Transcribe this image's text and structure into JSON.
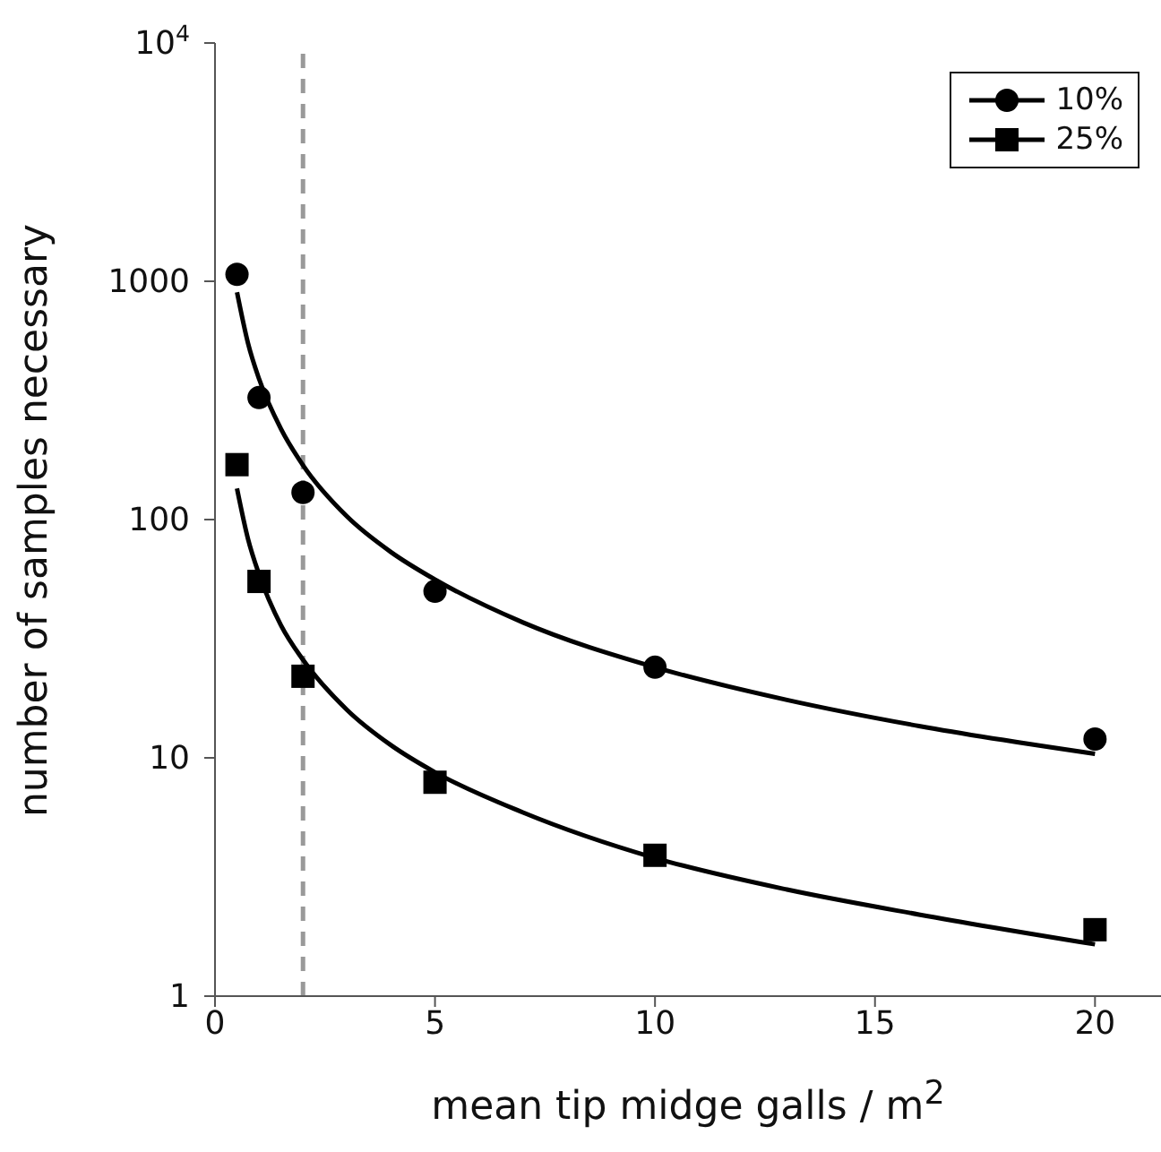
{
  "chart_data": {
    "type": "scatter",
    "xlabel": "mean tip midge galls / m$^{2}$",
    "ylabel": "number of samples necessary",
    "log": "y",
    "grid": false,
    "legend": "top right",
    "xlim": [
      0,
      21.5
    ],
    "xticks": [
      0,
      5,
      10,
      15,
      20
    ],
    "ylim": [
      1,
      10000
    ],
    "yticks": [
      1,
      10,
      100,
      1000,
      {
        "value": 10000,
        "label": "10$^{4}$"
      }
    ],
    "ref_lines": [
      {
        "axis": "x",
        "value": 2,
        "color": "#999999",
        "line_style": "dashed"
      }
    ],
    "series": [
      {
        "name": "10%",
        "marker": "circle",
        "color": "#000000",
        "x": [
          0.5,
          1,
          2,
          5,
          10,
          20
        ],
        "values": [
          1070,
          325,
          130,
          50,
          24,
          12
        ]
      },
      {
        "name": "25%",
        "marker": "square",
        "color": "#000000",
        "x": [
          0.5,
          1,
          2,
          5,
          10,
          20
        ],
        "values": [
          170,
          55,
          22,
          7.9,
          3.9,
          1.9
        ]
      },
      {
        "type": "line",
        "marker": "none",
        "line_style": "solid",
        "color": "#000000",
        "x": [
          0.5,
          0.75,
          1,
          1.5,
          2,
          3,
          4,
          5,
          7,
          10,
          13,
          16,
          20
        ],
        "values": [
          900,
          550,
          390,
          240,
          169,
          103,
          73,
          56,
          37,
          24,
          17.5,
          13.6,
          10.4
        ]
      },
      {
        "type": "line",
        "marker": "none",
        "line_style": "solid",
        "color": "#000000",
        "x": [
          0.5,
          0.75,
          1,
          1.5,
          2,
          3,
          4,
          5,
          7,
          10,
          13,
          16,
          20
        ],
        "values": [
          135,
          83,
          59,
          36,
          25.8,
          15.9,
          11.3,
          8.7,
          5.9,
          3.8,
          2.8,
          2.2,
          1.65
        ]
      }
    ]
  }
}
